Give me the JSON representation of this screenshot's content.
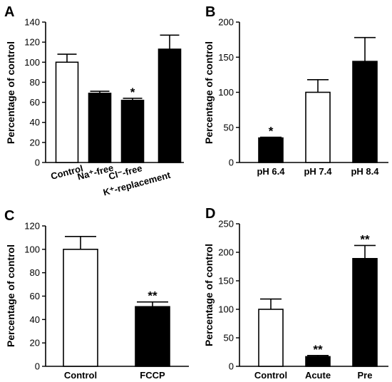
{
  "figure": {
    "panels": [
      "A",
      "B",
      "C",
      "D"
    ]
  },
  "chart_data": [
    {
      "panel": "A",
      "type": "bar",
      "ylabel": "Percentage of control",
      "ylim": [
        0,
        140
      ],
      "yticks": [
        0,
        20,
        40,
        60,
        80,
        100,
        120,
        140
      ],
      "categories": [
        "Control",
        "Na⁺-free",
        "Cl⁻-free",
        "K⁺-replacement"
      ],
      "values": [
        100,
        69,
        62,
        113
      ],
      "errors": [
        8,
        2,
        2,
        14
      ],
      "fills": [
        "white",
        "black",
        "black",
        "black"
      ],
      "annotations": [
        "",
        "",
        "*",
        ""
      ]
    },
    {
      "panel": "B",
      "type": "bar",
      "ylabel": "Percentage of control",
      "ylim": [
        0,
        200
      ],
      "yticks": [
        0,
        50,
        100,
        150,
        200
      ],
      "categories": [
        "pH 6.4",
        "pH 7.4",
        "pH 8.4"
      ],
      "values": [
        35,
        100,
        144
      ],
      "errors": [
        1,
        18,
        34
      ],
      "fills": [
        "black",
        "white",
        "black"
      ],
      "annotations": [
        "*",
        "",
        ""
      ]
    },
    {
      "panel": "C",
      "type": "bar",
      "ylabel": "Percentage of control",
      "ylim": [
        0,
        120
      ],
      "yticks": [
        0,
        20,
        40,
        60,
        80,
        100,
        120
      ],
      "categories": [
        "Control",
        "FCCP"
      ],
      "values": [
        100,
        51
      ],
      "errors": [
        11,
        4
      ],
      "fills": [
        "white",
        "black"
      ],
      "annotations": [
        "",
        "**"
      ]
    },
    {
      "panel": "D",
      "type": "bar",
      "ylabel": "Percentage of control",
      "ylim": [
        0,
        250
      ],
      "yticks": [
        0,
        50,
        100,
        150,
        200,
        250
      ],
      "categories": [
        "Control",
        "Acute",
        "Pre"
      ],
      "values": [
        100,
        17,
        189
      ],
      "errors": [
        18,
        2,
        23
      ],
      "fills": [
        "white",
        "black",
        "black"
      ],
      "annotations": [
        "",
        "**",
        "**"
      ]
    }
  ]
}
